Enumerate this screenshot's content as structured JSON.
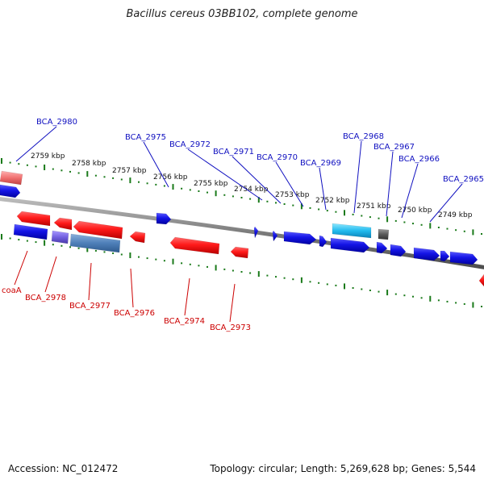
{
  "title": "Bacillus cereus 03BB102, complete genome",
  "footer": {
    "accession": "Accession: NC_012472",
    "summary": "Topology: circular; Length: 5,269,628 bp; Genes: 5,544"
  },
  "colors": {
    "forward_label": "#1010c0",
    "reverse_label": "#cc0000",
    "backbone": "#888888",
    "ticks": "#1a7a1a",
    "forward_gene": "#1111dd",
    "reverse_gene": "#ee1111"
  },
  "scale_labels": [
    "2759 kbp",
    "2758 kbp",
    "2757 kbp",
    "2756 kbp",
    "2755 kbp",
    "2754 kbp",
    "2753 kbp",
    "2752 kbp",
    "2751 kbp",
    "2750 kbp",
    "2749 kbp"
  ],
  "forward_labels": [
    "BCA_2980",
    "BCA_2975",
    "BCA_2972",
    "BCA_2971",
    "BCA_2970",
    "BCA_2969",
    "BCA_2968",
    "BCA_2967",
    "BCA_2966",
    "BCA_2965"
  ],
  "reverse_labels": [
    "coaA",
    "BCA_2978",
    "BCA_2977",
    "BCA_2976",
    "BCA_2974",
    "BCA_2973"
  ]
}
